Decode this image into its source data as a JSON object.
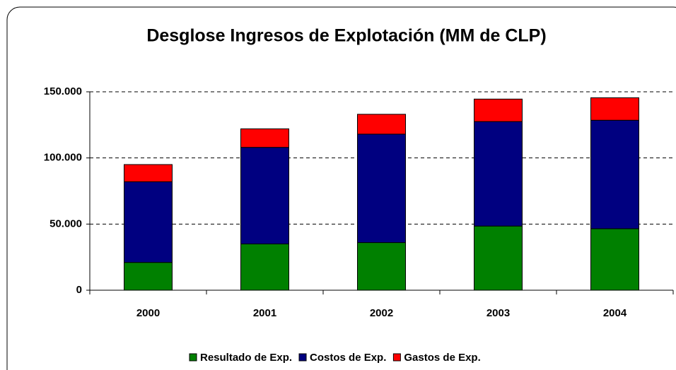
{
  "chart_data": {
    "type": "stacked_bar",
    "title": "Desglose Ingresos de Explotación (MM de CLP)",
    "categories": [
      "2000",
      "2001",
      "2002",
      "2003",
      "2004"
    ],
    "series": [
      {
        "name": "Resultado de Exp.",
        "color": "#008000",
        "values": [
          21000,
          35000,
          36000,
          48500,
          46500
        ]
      },
      {
        "name": "Costos de Exp.",
        "color": "#000080",
        "values": [
          61000,
          73000,
          82000,
          79000,
          82000
        ]
      },
      {
        "name": "Gastos de Exp.",
        "color": "#ff0000",
        "values": [
          13000,
          14000,
          15000,
          17000,
          17000
        ]
      }
    ],
    "ylim": [
      0,
      150000
    ],
    "yticks": [
      0,
      {
        "value": 50000,
        "label": "50.000"
      },
      {
        "value": 100000,
        "label": "100.000"
      },
      {
        "value": 150000,
        "label": "150.000"
      }
    ],
    "grid": true,
    "legend": "bottom"
  }
}
